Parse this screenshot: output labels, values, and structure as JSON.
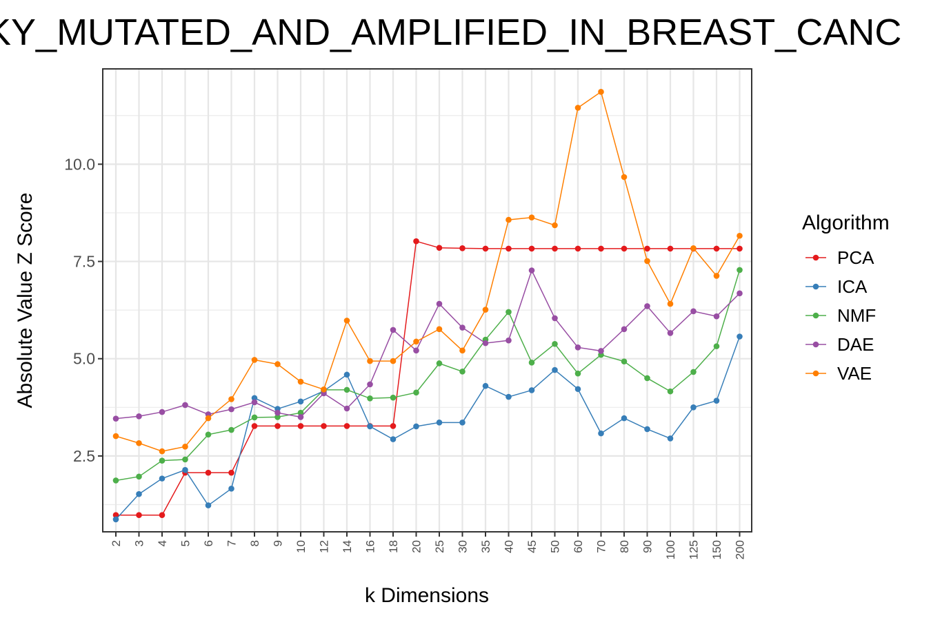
{
  "chart_data": {
    "type": "line",
    "title": "KY_MUTATED_AND_AMPLIFIED_IN_BREAST_CANC",
    "xlabel": "k Dimensions",
    "ylabel": "Absolute Value Z Score",
    "categories": [
      "2",
      "3",
      "4",
      "5",
      "6",
      "7",
      "8",
      "9",
      "10",
      "12",
      "14",
      "16",
      "18",
      "20",
      "25",
      "30",
      "35",
      "40",
      "45",
      "50",
      "60",
      "70",
      "80",
      "90",
      "100",
      "125",
      "150",
      "200"
    ],
    "ylim": [
      0.55,
      12.45
    ],
    "yticks": [
      2.5,
      5.0,
      7.5,
      10.0
    ],
    "ytick_labels": [
      "2.5",
      "5.0",
      "7.5",
      "10.0"
    ],
    "grid": true,
    "legend": {
      "title": "Algorithm",
      "position": "right"
    },
    "series": [
      {
        "name": "PCA",
        "color": "#E41A1C",
        "values": [
          0.98,
          0.98,
          0.98,
          2.07,
          2.07,
          2.07,
          3.27,
          3.27,
          3.27,
          3.27,
          3.27,
          3.27,
          3.27,
          8.02,
          7.85,
          7.84,
          7.83,
          7.83,
          7.83,
          7.83,
          7.83,
          7.83,
          7.83,
          7.83,
          7.83,
          7.83,
          7.83,
          7.83
        ]
      },
      {
        "name": "ICA",
        "color": "#377EB8",
        "values": [
          0.87,
          1.52,
          1.92,
          2.14,
          1.23,
          1.66,
          3.99,
          3.71,
          3.9,
          4.17,
          4.59,
          3.26,
          2.93,
          3.26,
          3.36,
          3.36,
          4.3,
          4.02,
          4.19,
          4.71,
          4.22,
          3.08,
          3.47,
          3.19,
          2.95,
          3.75,
          3.92,
          5.57
        ]
      },
      {
        "name": "NMF",
        "color": "#4DAF4A",
        "values": [
          1.87,
          1.97,
          2.38,
          2.41,
          3.05,
          3.17,
          3.49,
          3.5,
          3.61,
          4.2,
          4.2,
          3.98,
          4.0,
          4.13,
          4.88,
          4.67,
          5.49,
          6.2,
          4.9,
          5.38,
          4.62,
          5.1,
          4.93,
          4.5,
          4.16,
          4.66,
          5.32,
          7.28
        ]
      },
      {
        "name": "DAE",
        "color": "#984EA3",
        "values": [
          3.46,
          3.52,
          3.63,
          3.81,
          3.57,
          3.7,
          3.88,
          3.61,
          3.5,
          4.11,
          3.72,
          4.34,
          5.74,
          5.21,
          6.41,
          5.8,
          5.4,
          5.47,
          7.27,
          6.04,
          5.29,
          5.2,
          5.76,
          6.35,
          5.66,
          6.22,
          6.09,
          6.68
        ]
      },
      {
        "name": "VAE",
        "color": "#FF7F00",
        "values": [
          3.01,
          2.83,
          2.62,
          2.74,
          3.47,
          3.96,
          4.97,
          4.86,
          4.41,
          4.21,
          5.98,
          4.94,
          4.94,
          5.44,
          5.76,
          5.21,
          6.26,
          8.57,
          8.63,
          8.43,
          11.45,
          11.86,
          9.67,
          7.51,
          6.41,
          7.84,
          7.13,
          8.16
        ]
      }
    ]
  }
}
